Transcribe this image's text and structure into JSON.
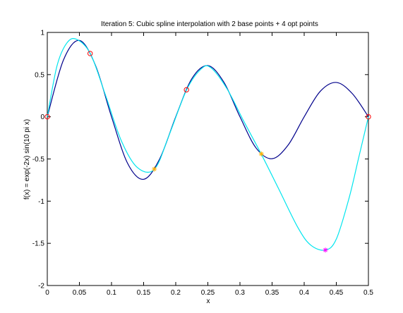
{
  "chart_data": {
    "type": "line",
    "title": "Iteration 5: Cubic spline interpolation with 2 base points + 4 opt points",
    "xlabel": "x",
    "ylabel": "f(x) = exp(-2x) sin(10 pi x)",
    "xlim": [
      0,
      0.5
    ],
    "ylim": [
      -2,
      1
    ],
    "xticks": [
      0,
      0.05,
      0.1,
      0.15,
      0.2,
      0.25,
      0.3,
      0.35,
      0.4,
      0.45,
      0.5
    ],
    "xtick_labels": [
      "0",
      "0.05",
      "0.1",
      "0.15",
      "0.2",
      "0.25",
      "0.3",
      "0.35",
      "0.4",
      "0.45",
      "0.5"
    ],
    "yticks": [
      -2,
      -1.5,
      -1,
      -0.5,
      0,
      0.5,
      1
    ],
    "ytick_labels": [
      "-2",
      "-1.5",
      "-1",
      "-0.5",
      "0",
      "0.5",
      "1"
    ],
    "grid": false,
    "series": [
      {
        "color": "#00008b",
        "x": [
          0,
          0.025,
          0.05,
          0.075,
          0.1,
          0.125,
          0.15,
          0.175,
          0.2,
          0.225,
          0.25,
          0.275,
          0.3,
          0.325,
          0.35,
          0.375,
          0.4,
          0.425,
          0.45,
          0.475,
          0.5
        ],
        "y": [
          0,
          0.67,
          0.905,
          0.61,
          0,
          -0.551,
          -0.741,
          -0.499,
          0,
          0.451,
          0.607,
          0.409,
          0,
          -0.369,
          -0.497,
          -0.335,
          0,
          0.302,
          0.407,
          0.274,
          0
        ]
      },
      {
        "color": "#00e5ee",
        "x": [
          0,
          0.015,
          0.03,
          0.045,
          0.067,
          0.09,
          0.115,
          0.14,
          0.167,
          0.19,
          0.217,
          0.24,
          0.255,
          0.28,
          0.305,
          0.333,
          0.36,
          0.39,
          0.41,
          0.433,
          0.45,
          0.47,
          0.485,
          0.5
        ],
        "y": [
          0,
          0.6,
          0.87,
          0.92,
          0.75,
          0.27,
          -0.28,
          -0.6,
          -0.62,
          -0.21,
          0.32,
          0.57,
          0.58,
          0.33,
          -0.04,
          -0.44,
          -0.85,
          -1.31,
          -1.52,
          -1.58,
          -1.45,
          -0.96,
          -0.48,
          0
        ]
      }
    ],
    "markers": [
      {
        "x": 0,
        "y": 0,
        "shape": "circle",
        "color": "#ff0000"
      },
      {
        "x": 0.0667,
        "y": 0.75,
        "shape": "circle",
        "color": "#ff0000"
      },
      {
        "x": 0.2167,
        "y": 0.32,
        "shape": "circle",
        "color": "#ff0000"
      },
      {
        "x": 0.5,
        "y": 0,
        "shape": "circle",
        "color": "#ff0000"
      },
      {
        "x": 0.1667,
        "y": -0.62,
        "shape": "star",
        "color": "#ffb000"
      },
      {
        "x": 0.3333,
        "y": -0.44,
        "shape": "star",
        "color": "#ffb000"
      },
      {
        "x": 0.433,
        "y": -1.58,
        "shape": "star",
        "color": "#ff00ff"
      }
    ]
  }
}
